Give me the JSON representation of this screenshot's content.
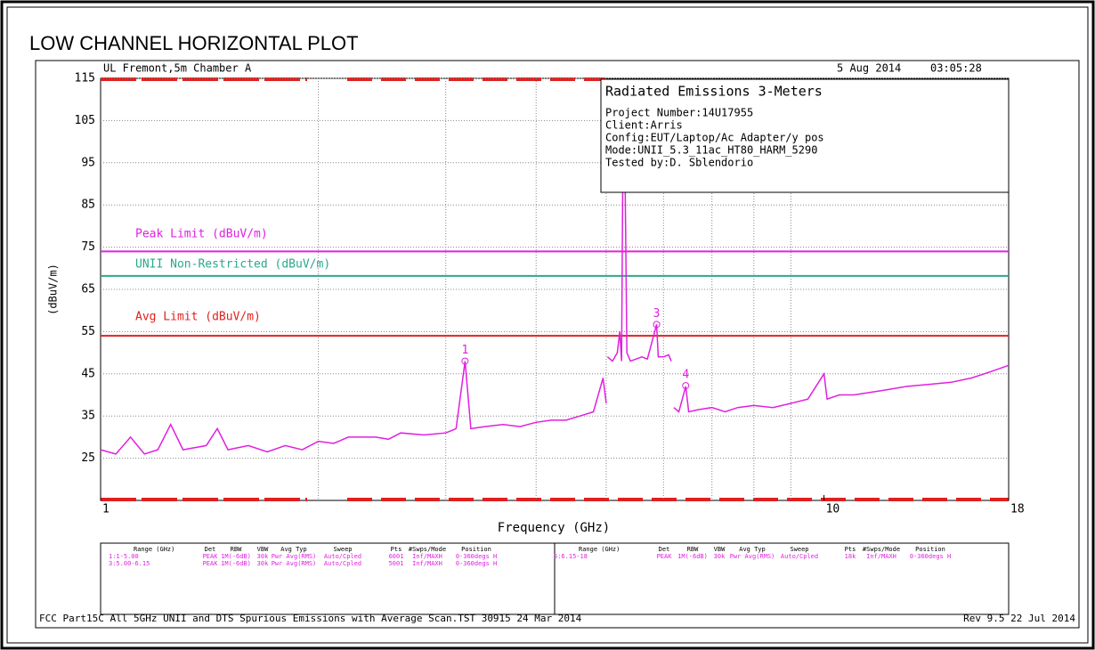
{
  "chart_data": {
    "type": "line",
    "title": "LOW CHANNEL HORIZONTAL PLOT",
    "header_left": "UL Fremont,5m Chamber A",
    "header_date": "5 Aug 2014",
    "header_time": "03:05:28",
    "x_label": "Frequency (GHz)",
    "y_label": "(dBuV/m)",
    "xscale": "log",
    "xlim": [
      1,
      18
    ],
    "xticks": [
      1,
      10,
      18
    ],
    "xgrid_lines": [
      2,
      3,
      4,
      5,
      6,
      7,
      8,
      9
    ],
    "ylim": [
      15,
      115
    ],
    "yticks": [
      25,
      35,
      45,
      55,
      65,
      75,
      85,
      95,
      105,
      115
    ],
    "grid": true,
    "series": [
      {
        "name": "Trace",
        "color": "#e020e0",
        "x": [
          1.0,
          1.05,
          1.1,
          1.15,
          1.2,
          1.25,
          1.3,
          1.4,
          1.45,
          1.5,
          1.6,
          1.7,
          1.8,
          1.9,
          2.0,
          2.1,
          2.2,
          2.4,
          2.5,
          2.6,
          2.8,
          3.0,
          3.1,
          3.19,
          3.25,
          3.4,
          3.6,
          3.8,
          4.0,
          4.2,
          4.4,
          4.6,
          4.8,
          4.95,
          5.0,
          5.01,
          5.02,
          5.1,
          5.18,
          5.22,
          5.25,
          5.27,
          5.29,
          5.31,
          5.34,
          5.4,
          5.5,
          5.6,
          5.7,
          5.87,
          5.9,
          6.0,
          6.1,
          6.15,
          6.17,
          6.2,
          6.3,
          6.44,
          6.5,
          6.7,
          7.0,
          7.3,
          7.6,
          8.0,
          8.5,
          9.0,
          9.5,
          10.0,
          10.1,
          10.5,
          11,
          12,
          13,
          14,
          15,
          16,
          17,
          18
        ],
        "values": [
          27,
          26,
          30,
          26,
          27,
          33,
          27,
          28,
          32,
          27,
          28,
          26.5,
          28,
          27,
          29,
          28.5,
          30,
          30,
          29.5,
          31,
          30.5,
          31,
          32,
          48,
          32,
          32.5,
          33,
          32.5,
          33.5,
          34,
          34,
          35,
          36,
          44,
          38,
          null,
          49,
          48,
          50,
          55,
          48,
          90,
          95,
          90,
          50,
          48,
          48.5,
          49,
          48.5,
          56.7,
          49,
          49,
          49.5,
          48,
          null,
          37,
          36,
          42,
          36,
          36.5,
          37,
          36,
          37,
          37.5,
          37,
          38,
          39,
          45,
          39,
          40,
          40,
          41,
          42,
          42.5,
          43,
          44,
          45.5,
          47
        ]
      }
    ],
    "limits": [
      {
        "name": "Peak Limit (dBuV/m)",
        "color": "#e020e0",
        "value": 74
      },
      {
        "name": "UNII Non-Restricted (dBuV/m)",
        "color": "#2aa88a",
        "value": 68.2
      },
      {
        "name": "Avg Limit (dBuV/m)",
        "color": "#e02020",
        "value": 54
      }
    ],
    "markers": [
      {
        "label": "1",
        "x": 3.19,
        "value": 48
      },
      {
        "label": "3",
        "x": 5.87,
        "value": 56.7
      },
      {
        "label": "4",
        "x": 6.44,
        "value": 42.2
      }
    ],
    "info_box": {
      "title": "Radiated Emissions 3-Meters",
      "lines": [
        "Project Number:14U17955",
        "Client:Arris",
        "Config:EUT/Laptop/Ac Adapter/y pos",
        "Mode:UNII_5.3_11ac_HT80_HARM_5290",
        "Tested by:D. Sblendorio"
      ]
    },
    "settings_table": {
      "headers": [
        "Range (GHz)",
        "Det",
        "RBW",
        "VBW",
        "Avg Typ",
        "Sweep",
        "Pts",
        "#Swps/Mode",
        "Position"
      ],
      "rows": [
        [
          "1:1-5.00",
          "PEAK",
          "1M(-6dB)",
          "30k",
          "Pwr Avg(RMS)",
          "Auto/Cpled",
          "6001",
          "Inf/MAXH",
          "0-360degs H"
        ],
        [
          "3:5.00-6.15",
          "PEAK",
          "1M(-6dB)",
          "30k",
          "Pwr Avg(RMS)",
          "Auto/Cpled",
          "5001",
          "Inf/MAXH",
          "0-360degs H"
        ],
        [
          "5:6.15-18",
          "PEAK",
          "1M(-6dB)",
          "30k",
          "Pwr Avg(RMS)",
          "Auto/Cpled",
          "18k",
          "Inf/MAXH",
          "0-360degs H"
        ]
      ]
    },
    "footer_left": "FCC Part15C All 5GHz UNII and DTS Spurious Emissions with Average Scan.TST 30915 24 Mar 2014",
    "footer_right": "Rev 9.5 22 Jul 2014"
  }
}
